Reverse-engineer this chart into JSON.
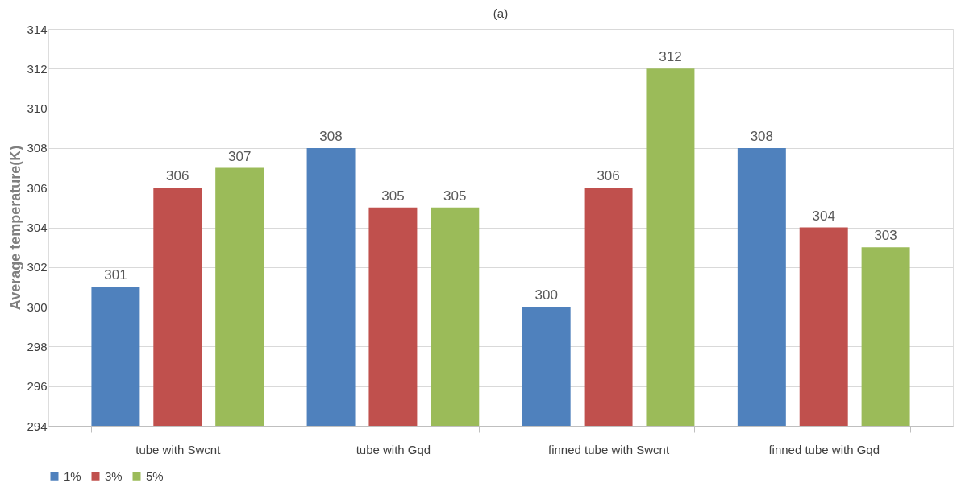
{
  "chart_data": {
    "type": "bar",
    "title": "(a)",
    "ylabel": "Average temperature(K)",
    "categories": [
      "tube with Swcnt",
      "tube with Gqd",
      "finned tube with Swcnt",
      "finned tube with Gqd"
    ],
    "series": [
      {
        "name": "1%",
        "color": "#4f81bd",
        "values": [
          301,
          308,
          300,
          308
        ]
      },
      {
        "name": "3%",
        "color": "#c0504d",
        "values": [
          306,
          305,
          306,
          304
        ]
      },
      {
        "name": "5%",
        "color": "#9bbb59",
        "values": [
          307,
          305,
          312,
          303
        ]
      }
    ],
    "ylim": [
      294,
      314
    ],
    "yticks": [
      294,
      296,
      298,
      300,
      302,
      304,
      306,
      308,
      310,
      312,
      314
    ],
    "grid": "y",
    "legend": "bottom",
    "data_labels": true
  }
}
